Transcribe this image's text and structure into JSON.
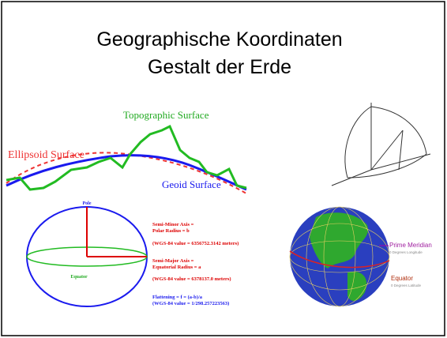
{
  "title": [
    "Geographische Koordinaten",
    "Gestalt der Erde"
  ],
  "surfaces": {
    "topographic": "Topographic Surface",
    "ellipsoid": "Ellipsoid Surface",
    "geoid": "Geoid Surface"
  },
  "ellipse": {
    "pole": "Pole",
    "equator": "Equator",
    "minor": [
      "Semi-Minor Axis =",
      "Polar Radius = b",
      "(WGS-84 value = 6356752.3142 meters)"
    ],
    "major": [
      "Semi-Major Axis =",
      "Equatorial Radius = a",
      "(WGS-84 value = 6378137.0  meters)"
    ],
    "flattening": [
      "Flattening = f = (a-b)/a",
      "(WGS-84 value = 1/298.257223563)"
    ]
  },
  "globe": {
    "meridian": "Prime Meridian",
    "meridian_note": "0 Degrees Longitude",
    "equator": "Equator",
    "equator_note": "0 Degrees Latitude"
  }
}
